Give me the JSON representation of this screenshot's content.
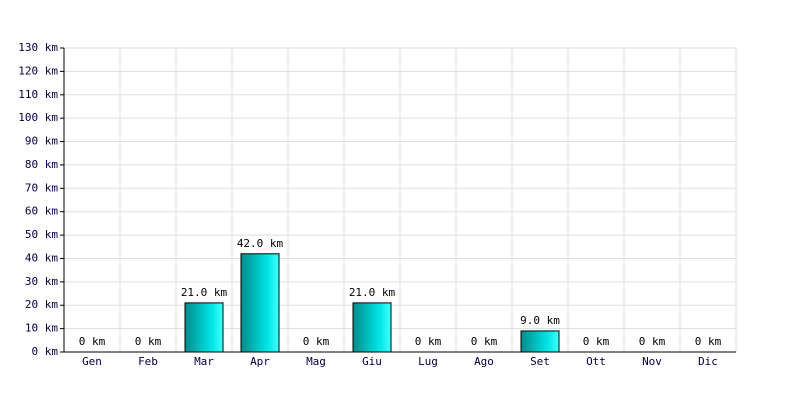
{
  "chart_data": {
    "type": "bar",
    "categories": [
      "Gen",
      "Feb",
      "Mar",
      "Apr",
      "Mag",
      "Giu",
      "Lug",
      "Ago",
      "Set",
      "Ott",
      "Nov",
      "Dic"
    ],
    "values": [
      0,
      0,
      21,
      42,
      0,
      21,
      0,
      0,
      9,
      0,
      0,
      0
    ],
    "value_labels": [
      "0 km",
      "0 km",
      "21.0 km",
      "42.0 km",
      "0 km",
      "21.0 km",
      "0 km",
      "0 km",
      "9.0 km",
      "0 km",
      "0 km",
      "0 km"
    ],
    "color": "#00cccc",
    "ylim": [
      0,
      130
    ],
    "yticks": [
      {
        "value": 0,
        "label": "0 km"
      },
      {
        "value": 10,
        "label": "10 km"
      },
      {
        "value": 20,
        "label": "20 km"
      },
      {
        "value": 30,
        "label": "30 km"
      },
      {
        "value": 40,
        "label": "40 km"
      },
      {
        "value": 50,
        "label": "50 km"
      },
      {
        "value": 60,
        "label": "60 km"
      },
      {
        "value": 70,
        "label": "70 km"
      },
      {
        "value": 80,
        "label": "80 km"
      },
      {
        "value": 90,
        "label": "90 km"
      },
      {
        "value": 100,
        "label": "100 km"
      },
      {
        "value": 110,
        "label": "110 km"
      },
      {
        "value": 120,
        "label": "120 km"
      },
      {
        "value": 130,
        "label": "130 km"
      }
    ],
    "grid": true
  }
}
